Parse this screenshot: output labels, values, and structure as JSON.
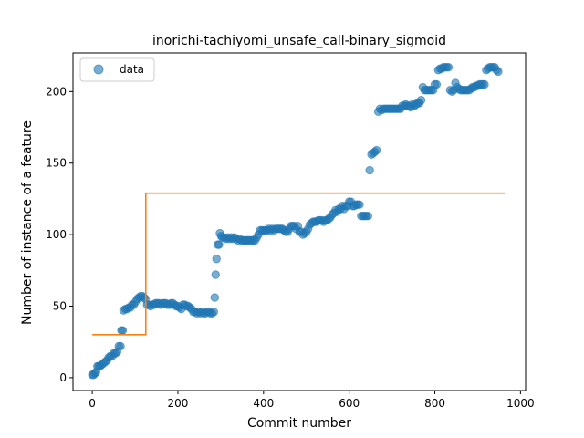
{
  "chart_data": {
    "type": "scatter",
    "title": "inorichi-tachiyomi_unsafe_call-binary_sigmoid",
    "xlabel": "Commit number",
    "ylabel": "Number of instance of a feature",
    "xlim": [
      -45,
      1012
    ],
    "ylim": [
      -9,
      227
    ],
    "x_ticks": [
      0,
      200,
      400,
      600,
      800,
      1000
    ],
    "y_ticks": [
      0,
      50,
      100,
      150,
      200
    ],
    "x_tick_labels": [
      "0",
      "200",
      "400",
      "600",
      "800",
      "1000"
    ],
    "y_tick_labels": [
      "0",
      "50",
      "100",
      "150",
      "200"
    ],
    "grid": false,
    "legend": {
      "placement": "upper-left",
      "entries": [
        "data"
      ]
    },
    "colors": {
      "data": "#1f77b4",
      "fit": "#ff7f0e"
    },
    "series": [
      {
        "name": "data",
        "kind": "scatter",
        "points": [
          [
            0,
            2
          ],
          [
            3,
            2
          ],
          [
            6,
            3
          ],
          [
            9,
            4
          ],
          [
            12,
            8
          ],
          [
            15,
            8
          ],
          [
            18,
            8
          ],
          [
            22,
            9
          ],
          [
            26,
            10
          ],
          [
            30,
            11
          ],
          [
            34,
            12
          ],
          [
            38,
            14
          ],
          [
            42,
            15
          ],
          [
            46,
            15
          ],
          [
            50,
            17
          ],
          [
            54,
            17
          ],
          [
            58,
            18
          ],
          [
            62,
            22
          ],
          [
            66,
            22
          ],
          [
            68,
            33
          ],
          [
            71,
            33
          ],
          [
            73,
            47
          ],
          [
            77,
            48
          ],
          [
            81,
            48
          ],
          [
            85,
            49
          ],
          [
            89,
            49
          ],
          [
            93,
            51
          ],
          [
            97,
            51
          ],
          [
            101,
            53
          ],
          [
            105,
            55
          ],
          [
            109,
            56
          ],
          [
            113,
            57
          ],
          [
            117,
            57
          ],
          [
            121,
            56
          ],
          [
            124,
            55
          ],
          [
            128,
            51
          ],
          [
            132,
            51
          ],
          [
            136,
            50
          ],
          [
            140,
            51
          ],
          [
            144,
            51
          ],
          [
            148,
            52
          ],
          [
            152,
            52
          ],
          [
            156,
            52
          ],
          [
            160,
            51
          ],
          [
            164,
            52
          ],
          [
            168,
            52
          ],
          [
            172,
            52
          ],
          [
            176,
            51
          ],
          [
            180,
            51
          ],
          [
            184,
            52
          ],
          [
            188,
            52
          ],
          [
            192,
            51
          ],
          [
            196,
            50
          ],
          [
            200,
            50
          ],
          [
            204,
            49
          ],
          [
            208,
            48
          ],
          [
            212,
            51
          ],
          [
            216,
            51
          ],
          [
            220,
            50
          ],
          [
            224,
            50
          ],
          [
            228,
            49
          ],
          [
            232,
            48
          ],
          [
            236,
            46
          ],
          [
            240,
            46
          ],
          [
            244,
            45
          ],
          [
            248,
            46
          ],
          [
            252,
            45
          ],
          [
            256,
            46
          ],
          [
            260,
            45
          ],
          [
            264,
            45
          ],
          [
            268,
            46
          ],
          [
            272,
            46
          ],
          [
            276,
            45
          ],
          [
            280,
            45
          ],
          [
            284,
            46
          ],
          [
            286,
            56
          ],
          [
            288,
            72
          ],
          [
            290,
            83
          ],
          [
            293,
            93
          ],
          [
            296,
            93
          ],
          [
            298,
            101
          ],
          [
            301,
            99
          ],
          [
            304,
            98
          ],
          [
            308,
            98
          ],
          [
            312,
            97
          ],
          [
            316,
            98
          ],
          [
            320,
            97
          ],
          [
            324,
            98
          ],
          [
            328,
            97
          ],
          [
            332,
            98
          ],
          [
            336,
            97
          ],
          [
            340,
            96
          ],
          [
            344,
            97
          ],
          [
            348,
            96
          ],
          [
            352,
            96
          ],
          [
            356,
            96
          ],
          [
            360,
            96
          ],
          [
            364,
            96
          ],
          [
            368,
            96
          ],
          [
            372,
            96
          ],
          [
            376,
            96
          ],
          [
            380,
            96
          ],
          [
            384,
            98
          ],
          [
            388,
            100
          ],
          [
            392,
            103
          ],
          [
            396,
            103
          ],
          [
            400,
            103
          ],
          [
            404,
            103
          ],
          [
            408,
            103
          ],
          [
            412,
            104
          ],
          [
            416,
            103
          ],
          [
            420,
            104
          ],
          [
            424,
            103
          ],
          [
            428,
            104
          ],
          [
            432,
            104
          ],
          [
            436,
            104
          ],
          [
            440,
            104
          ],
          [
            444,
            104
          ],
          [
            448,
            103
          ],
          [
            452,
            102
          ],
          [
            456,
            102
          ],
          [
            460,
            104
          ],
          [
            464,
            106
          ],
          [
            468,
            106
          ],
          [
            472,
            106
          ],
          [
            476,
            104
          ],
          [
            480,
            106
          ],
          [
            484,
            102
          ],
          [
            488,
            102
          ],
          [
            492,
            100
          ],
          [
            496,
            101
          ],
          [
            500,
            102
          ],
          [
            504,
            104
          ],
          [
            508,
            107
          ],
          [
            512,
            108
          ],
          [
            516,
            109
          ],
          [
            520,
            109
          ],
          [
            524,
            109
          ],
          [
            528,
            110
          ],
          [
            532,
            110
          ],
          [
            536,
            110
          ],
          [
            540,
            109
          ],
          [
            544,
            110
          ],
          [
            548,
            110
          ],
          [
            552,
            111
          ],
          [
            556,
            112
          ],
          [
            560,
            114
          ],
          [
            564,
            115
          ],
          [
            568,
            117
          ],
          [
            572,
            116
          ],
          [
            576,
            118
          ],
          [
            580,
            118
          ],
          [
            584,
            120
          ],
          [
            588,
            118
          ],
          [
            592,
            120
          ],
          [
            596,
            120
          ],
          [
            600,
            123
          ],
          [
            604,
            123
          ],
          [
            608,
            120
          ],
          [
            612,
            120
          ],
          [
            616,
            121
          ],
          [
            620,
            121
          ],
          [
            624,
            121
          ],
          [
            628,
            113
          ],
          [
            632,
            113
          ],
          [
            636,
            113
          ],
          [
            640,
            113
          ],
          [
            644,
            113
          ],
          [
            648,
            145
          ],
          [
            652,
            156
          ],
          [
            656,
            157
          ],
          [
            660,
            158
          ],
          [
            664,
            159
          ],
          [
            668,
            186
          ],
          [
            672,
            188
          ],
          [
            676,
            187
          ],
          [
            680,
            188
          ],
          [
            684,
            188
          ],
          [
            688,
            188
          ],
          [
            692,
            188
          ],
          [
            696,
            188
          ],
          [
            700,
            188
          ],
          [
            704,
            188
          ],
          [
            708,
            188
          ],
          [
            712,
            188
          ],
          [
            716,
            188
          ],
          [
            720,
            188
          ],
          [
            724,
            190
          ],
          [
            728,
            190
          ],
          [
            732,
            191
          ],
          [
            736,
            190
          ],
          [
            740,
            190
          ],
          [
            744,
            189
          ],
          [
            748,
            191
          ],
          [
            752,
            190
          ],
          [
            756,
            191
          ],
          [
            760,
            192
          ],
          [
            764,
            192
          ],
          [
            768,
            194
          ],
          [
            772,
            203
          ],
          [
            776,
            201
          ],
          [
            780,
            201
          ],
          [
            784,
            201
          ],
          [
            788,
            201
          ],
          [
            792,
            201
          ],
          [
            796,
            201
          ],
          [
            800,
            205
          ],
          [
            804,
            205
          ],
          [
            808,
            215
          ],
          [
            812,
            216
          ],
          [
            816,
            216
          ],
          [
            820,
            217
          ],
          [
            824,
            217
          ],
          [
            828,
            217
          ],
          [
            832,
            217
          ],
          [
            836,
            201
          ],
          [
            840,
            200
          ],
          [
            844,
            201
          ],
          [
            848,
            206
          ],
          [
            852,
            203
          ],
          [
            856,
            202
          ],
          [
            860,
            201
          ],
          [
            864,
            201
          ],
          [
            868,
            201
          ],
          [
            872,
            201
          ],
          [
            876,
            201
          ],
          [
            880,
            201
          ],
          [
            884,
            202
          ],
          [
            888,
            203
          ],
          [
            892,
            203
          ],
          [
            896,
            204
          ],
          [
            900,
            204
          ],
          [
            904,
            205
          ],
          [
            908,
            205
          ],
          [
            912,
            205
          ],
          [
            916,
            205
          ],
          [
            920,
            215
          ],
          [
            924,
            216
          ],
          [
            928,
            217
          ],
          [
            932,
            217
          ],
          [
            936,
            217
          ],
          [
            940,
            217
          ],
          [
            944,
            215
          ],
          [
            948,
            214
          ]
        ]
      },
      {
        "name": "",
        "kind": "step",
        "points": [
          [
            0,
            30
          ],
          [
            125,
            30
          ],
          [
            125,
            129
          ],
          [
            963,
            129
          ]
        ]
      }
    ]
  }
}
